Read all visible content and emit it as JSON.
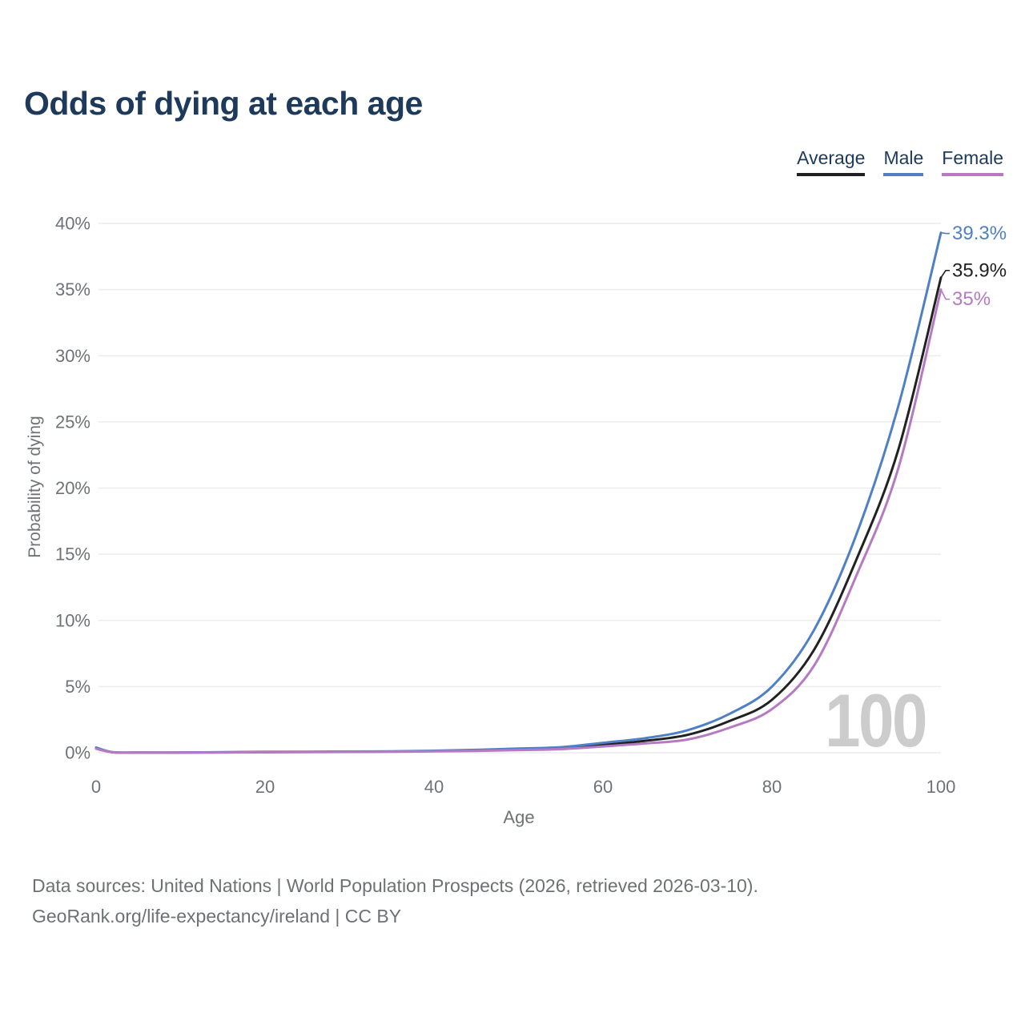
{
  "watermark": {
    "text": "100"
  },
  "footer": {
    "line1": "Data sources: United Nations | World Population Prospects (2026, retrieved 2026-03-10).",
    "line2": "GeoRank.org/life-expectancy/ireland | CC BY"
  },
  "chart_data": {
    "type": "line",
    "title": "Odds of dying at each age",
    "xlabel": "Age",
    "ylabel": "Probability of dying",
    "xlim": [
      0,
      100
    ],
    "ylim": [
      0,
      40
    ],
    "grid": true,
    "legend_position": "top-right",
    "x": [
      0,
      2,
      5,
      10,
      15,
      20,
      25,
      30,
      35,
      40,
      45,
      50,
      55,
      60,
      65,
      70,
      75,
      80,
      85,
      90,
      95,
      100
    ],
    "series": [
      {
        "name": "Average",
        "color": "#212121",
        "values": [
          0.35,
          0.03,
          0.02,
          0.01,
          0.03,
          0.05,
          0.06,
          0.07,
          0.09,
          0.12,
          0.17,
          0.25,
          0.34,
          0.6,
          0.9,
          1.35,
          2.4,
          4.0,
          7.8,
          14.6,
          23.0,
          35.9
        ]
      },
      {
        "name": "Male",
        "color": "#4f80c6",
        "values": [
          0.4,
          0.04,
          0.02,
          0.02,
          0.04,
          0.07,
          0.08,
          0.09,
          0.11,
          0.15,
          0.22,
          0.32,
          0.42,
          0.75,
          1.1,
          1.7,
          2.95,
          5.0,
          9.3,
          16.5,
          26.3,
          39.3
        ]
      },
      {
        "name": "Female",
        "color": "#b57ac2",
        "values": [
          0.3,
          0.03,
          0.01,
          0.01,
          0.02,
          0.04,
          0.05,
          0.06,
          0.07,
          0.1,
          0.14,
          0.2,
          0.27,
          0.48,
          0.7,
          1.0,
          1.9,
          3.3,
          6.6,
          13.4,
          21.6,
          35.0
        ]
      }
    ],
    "xticks": {
      "values": [
        0,
        20,
        40,
        60,
        80,
        100
      ],
      "labels": [
        "0",
        "20",
        "40",
        "60",
        "80",
        "100"
      ]
    },
    "yticks": {
      "values": [
        0,
        5,
        10,
        15,
        20,
        25,
        30,
        35,
        40
      ],
      "labels": [
        "0%",
        "5%",
        "10%",
        "15%",
        "20%",
        "25%",
        "30%",
        "35%",
        "40%"
      ]
    },
    "end_labels": [
      {
        "series": "Male",
        "text": "39.3%"
      },
      {
        "series": "Average",
        "text": "35.9%"
      },
      {
        "series": "Female",
        "text": "35%"
      }
    ]
  }
}
